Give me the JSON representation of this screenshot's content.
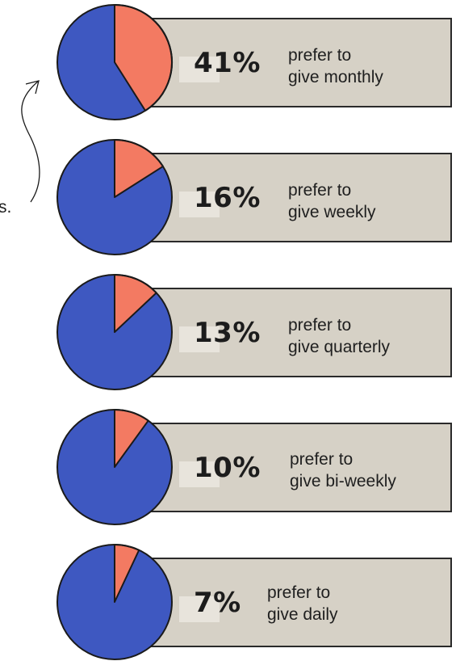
{
  "side_text": "s.",
  "colors": {
    "blue": "#3e58c1",
    "orange": "#f37a62",
    "card": "#d6d1c6",
    "outline": "#1a1a1a"
  },
  "chart_data": {
    "type": "pie",
    "slices": [
      {
        "percent_label": "41%",
        "value": 41,
        "line1": "prefer to",
        "line2": "give monthly"
      },
      {
        "percent_label": "16%",
        "value": 16,
        "line1": "prefer to",
        "line2": "give weekly"
      },
      {
        "percent_label": "13%",
        "value": 13,
        "line1": "prefer to",
        "line2": "give quarterly"
      },
      {
        "percent_label": "10%",
        "value": 10,
        "line1": "prefer to",
        "line2": "give bi-weekly"
      },
      {
        "percent_label": "7%",
        "value": 7,
        "line1": "prefer to",
        "line2": "give daily"
      }
    ]
  }
}
